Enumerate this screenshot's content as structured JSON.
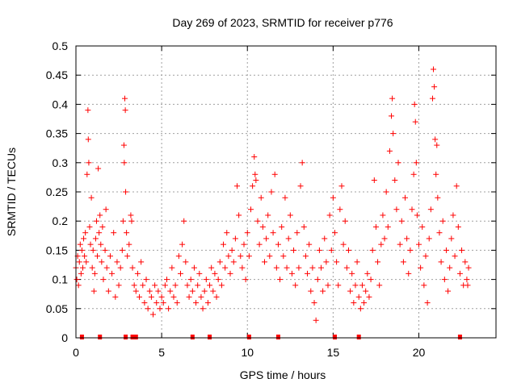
{
  "chart_data": {
    "type": "scatter",
    "title": "Day 269 of 2023, SRMTID for receiver p776",
    "xlabel": "GPS time / hours",
    "ylabel": "SRMTID / TECUs",
    "xlim": [
      0,
      24.5
    ],
    "ylim": [
      0,
      0.5
    ],
    "xticks": [
      "0",
      "5",
      "10",
      "15",
      "20"
    ],
    "yticks": [
      "0",
      "0.05",
      "0.1",
      "0.15",
      "0.2",
      "0.25",
      "0.3",
      "0.35",
      "0.4",
      "0.45",
      "0.5"
    ],
    "grid": true,
    "marker": "plus",
    "color": "#ff0000",
    "zero_marks": [
      0.35,
      1.4,
      2.9,
      3.3,
      3.5,
      6.8,
      7.8,
      10.1,
      11.8,
      15.1,
      16.5,
      22.4
    ],
    "series": [
      {
        "name": "p776",
        "points": [
          [
            0.0,
            0.12
          ],
          [
            0.05,
            0.1
          ],
          [
            0.1,
            0.14
          ],
          [
            0.15,
            0.09
          ],
          [
            0.2,
            0.13
          ],
          [
            0.25,
            0.16
          ],
          [
            0.3,
            0.11
          ],
          [
            0.35,
            0.15
          ],
          [
            0.4,
            0.12
          ],
          [
            0.45,
            0.17
          ],
          [
            0.5,
            0.14
          ],
          [
            0.55,
            0.18
          ],
          [
            0.6,
            0.13
          ],
          [
            0.65,
            0.28
          ],
          [
            0.7,
            0.39
          ],
          [
            0.72,
            0.34
          ],
          [
            0.75,
            0.3
          ],
          [
            0.8,
            0.19
          ],
          [
            0.85,
            0.16
          ],
          [
            0.9,
            0.24
          ],
          [
            0.95,
            0.12
          ],
          [
            1.0,
            0.15
          ],
          [
            1.05,
            0.08
          ],
          [
            1.1,
            0.11
          ],
          [
            1.15,
            0.17
          ],
          [
            1.2,
            0.2
          ],
          [
            1.25,
            0.14
          ],
          [
            1.3,
            0.29
          ],
          [
            1.35,
            0.18
          ],
          [
            1.4,
            0.21
          ],
          [
            1.45,
            0.16
          ],
          [
            1.5,
            0.13
          ],
          [
            1.55,
            0.19
          ],
          [
            1.6,
            0.1
          ],
          [
            1.7,
            0.15
          ],
          [
            1.75,
            0.22
          ],
          [
            1.8,
            0.12
          ],
          [
            1.9,
            0.08
          ],
          [
            2.0,
            0.14
          ],
          [
            2.1,
            0.11
          ],
          [
            2.2,
            0.18
          ],
          [
            2.3,
            0.07
          ],
          [
            2.4,
            0.13
          ],
          [
            2.5,
            0.09
          ],
          [
            2.6,
            0.12
          ],
          [
            2.7,
            0.15
          ],
          [
            2.75,
            0.2
          ],
          [
            2.8,
            0.33
          ],
          [
            2.82,
            0.3
          ],
          [
            2.85,
            0.41
          ],
          [
            2.88,
            0.39
          ],
          [
            2.9,
            0.25
          ],
          [
            2.95,
            0.18
          ],
          [
            3.0,
            0.14
          ],
          [
            3.1,
            0.16
          ],
          [
            3.2,
            0.21
          ],
          [
            3.25,
            0.2
          ],
          [
            3.3,
            0.12
          ],
          [
            3.4,
            0.09
          ],
          [
            3.5,
            0.08
          ],
          [
            3.6,
            0.11
          ],
          [
            3.7,
            0.07
          ],
          [
            3.8,
            0.13
          ],
          [
            3.9,
            0.09
          ],
          [
            4.0,
            0.06
          ],
          [
            4.1,
            0.1
          ],
          [
            4.2,
            0.05
          ],
          [
            4.3,
            0.08
          ],
          [
            4.4,
            0.07
          ],
          [
            4.5,
            0.04
          ],
          [
            4.6,
            0.09
          ],
          [
            4.7,
            0.06
          ],
          [
            4.8,
            0.08
          ],
          [
            4.9,
            0.05
          ],
          [
            5.0,
            0.07
          ],
          [
            5.1,
            0.06
          ],
          [
            5.2,
            0.09
          ],
          [
            5.3,
            0.1
          ],
          [
            5.4,
            0.05
          ],
          [
            5.5,
            0.08
          ],
          [
            5.6,
            0.12
          ],
          [
            5.7,
            0.07
          ],
          [
            5.8,
            0.09
          ],
          [
            5.9,
            0.06
          ],
          [
            6.0,
            0.14
          ],
          [
            6.1,
            0.11
          ],
          [
            6.2,
            0.16
          ],
          [
            6.3,
            0.2
          ],
          [
            6.4,
            0.13
          ],
          [
            6.5,
            0.09
          ],
          [
            6.6,
            0.07
          ],
          [
            6.7,
            0.1
          ],
          [
            6.8,
            0.08
          ],
          [
            6.9,
            0.12
          ],
          [
            7.0,
            0.06
          ],
          [
            7.1,
            0.09
          ],
          [
            7.2,
            0.11
          ],
          [
            7.3,
            0.07
          ],
          [
            7.4,
            0.05
          ],
          [
            7.5,
            0.08
          ],
          [
            7.6,
            0.1
          ],
          [
            7.7,
            0.06
          ],
          [
            7.8,
            0.09
          ],
          [
            7.9,
            0.12
          ],
          [
            8.0,
            0.08
          ],
          [
            8.1,
            0.11
          ],
          [
            8.2,
            0.07
          ],
          [
            8.3,
            0.1
          ],
          [
            8.4,
            0.13
          ],
          [
            8.5,
            0.09
          ],
          [
            8.6,
            0.16
          ],
          [
            8.7,
            0.12
          ],
          [
            8.8,
            0.18
          ],
          [
            8.9,
            0.14
          ],
          [
            9.0,
            0.11
          ],
          [
            9.1,
            0.15
          ],
          [
            9.2,
            0.13
          ],
          [
            9.3,
            0.17
          ],
          [
            9.4,
            0.26
          ],
          [
            9.5,
            0.21
          ],
          [
            9.6,
            0.14
          ],
          [
            9.7,
            0.12
          ],
          [
            9.8,
            0.16
          ],
          [
            9.9,
            0.1
          ],
          [
            10.0,
            0.18
          ],
          [
            10.1,
            0.14
          ],
          [
            10.2,
            0.22
          ],
          [
            10.3,
            0.26
          ],
          [
            10.4,
            0.31
          ],
          [
            10.45,
            0.28
          ],
          [
            10.5,
            0.27
          ],
          [
            10.6,
            0.2
          ],
          [
            10.7,
            0.16
          ],
          [
            10.8,
            0.24
          ],
          [
            10.9,
            0.19
          ],
          [
            11.0,
            0.13
          ],
          [
            11.1,
            0.17
          ],
          [
            11.2,
            0.21
          ],
          [
            11.3,
            0.14
          ],
          [
            11.4,
            0.25
          ],
          [
            11.5,
            0.18
          ],
          [
            11.6,
            0.28
          ],
          [
            11.7,
            0.12
          ],
          [
            11.8,
            0.16
          ],
          [
            11.9,
            0.1
          ],
          [
            12.0,
            0.19
          ],
          [
            12.1,
            0.14
          ],
          [
            12.2,
            0.24
          ],
          [
            12.3,
            0.12
          ],
          [
            12.4,
            0.17
          ],
          [
            12.5,
            0.21
          ],
          [
            12.6,
            0.11
          ],
          [
            12.7,
            0.15
          ],
          [
            12.8,
            0.09
          ],
          [
            12.9,
            0.18
          ],
          [
            13.0,
            0.12
          ],
          [
            13.1,
            0.26
          ],
          [
            13.2,
            0.3
          ],
          [
            13.3,
            0.19
          ],
          [
            13.4,
            0.14
          ],
          [
            13.5,
            0.11
          ],
          [
            13.6,
            0.16
          ],
          [
            13.7,
            0.08
          ],
          [
            13.8,
            0.12
          ],
          [
            13.9,
            0.06
          ],
          [
            14.0,
            0.03
          ],
          [
            14.1,
            0.1
          ],
          [
            14.2,
            0.15
          ],
          [
            14.3,
            0.12
          ],
          [
            14.4,
            0.08
          ],
          [
            14.5,
            0.17
          ],
          [
            14.6,
            0.13
          ],
          [
            14.7,
            0.09
          ],
          [
            14.8,
            0.21
          ],
          [
            14.9,
            0.15
          ],
          [
            15.0,
            0.24
          ],
          [
            15.1,
            0.18
          ],
          [
            15.2,
            0.13
          ],
          [
            15.3,
            0.09
          ],
          [
            15.4,
            0.22
          ],
          [
            15.5,
            0.26
          ],
          [
            15.6,
            0.16
          ],
          [
            15.7,
            0.2
          ],
          [
            15.8,
            0.12
          ],
          [
            15.9,
            0.15
          ],
          [
            16.0,
            0.08
          ],
          [
            16.1,
            0.11
          ],
          [
            16.2,
            0.06
          ],
          [
            16.3,
            0.09
          ],
          [
            16.4,
            0.13
          ],
          [
            16.5,
            0.07
          ],
          [
            16.6,
            0.05
          ],
          [
            16.7,
            0.09
          ],
          [
            16.8,
            0.06
          ],
          [
            16.9,
            0.08
          ],
          [
            17.0,
            0.11
          ],
          [
            17.1,
            0.07
          ],
          [
            17.2,
            0.1
          ],
          [
            17.3,
            0.15
          ],
          [
            17.4,
            0.27
          ],
          [
            17.5,
            0.19
          ],
          [
            17.6,
            0.13
          ],
          [
            17.7,
            0.09
          ],
          [
            17.8,
            0.16
          ],
          [
            17.9,
            0.21
          ],
          [
            18.0,
            0.17
          ],
          [
            18.1,
            0.25
          ],
          [
            18.2,
            0.19
          ],
          [
            18.3,
            0.32
          ],
          [
            18.4,
            0.38
          ],
          [
            18.45,
            0.41
          ],
          [
            18.5,
            0.35
          ],
          [
            18.6,
            0.27
          ],
          [
            18.7,
            0.22
          ],
          [
            18.8,
            0.3
          ],
          [
            18.9,
            0.16
          ],
          [
            19.0,
            0.2
          ],
          [
            19.1,
            0.13
          ],
          [
            19.2,
            0.24
          ],
          [
            19.3,
            0.17
          ],
          [
            19.4,
            0.11
          ],
          [
            19.5,
            0.15
          ],
          [
            19.6,
            0.22
          ],
          [
            19.7,
            0.28
          ],
          [
            19.75,
            0.4
          ],
          [
            19.8,
            0.37
          ],
          [
            19.85,
            0.3
          ],
          [
            19.9,
            0.21
          ],
          [
            20.0,
            0.16
          ],
          [
            20.1,
            0.12
          ],
          [
            20.2,
            0.19
          ],
          [
            20.3,
            0.09
          ],
          [
            20.4,
            0.14
          ],
          [
            20.5,
            0.06
          ],
          [
            20.6,
            0.17
          ],
          [
            20.7,
            0.22
          ],
          [
            20.8,
            0.41
          ],
          [
            20.85,
            0.46
          ],
          [
            20.9,
            0.43
          ],
          [
            20.95,
            0.34
          ],
          [
            21.0,
            0.28
          ],
          [
            21.05,
            0.33
          ],
          [
            21.1,
            0.24
          ],
          [
            21.2,
            0.18
          ],
          [
            21.3,
            0.13
          ],
          [
            21.4,
            0.2
          ],
          [
            21.5,
            0.1
          ],
          [
            21.6,
            0.15
          ],
          [
            21.7,
            0.08
          ],
          [
            21.8,
            0.12
          ],
          [
            21.9,
            0.17
          ],
          [
            22.0,
            0.21
          ],
          [
            22.1,
            0.14
          ],
          [
            22.2,
            0.26
          ],
          [
            22.3,
            0.19
          ],
          [
            22.4,
            0.11
          ],
          [
            22.5,
            0.15
          ],
          [
            22.6,
            0.09
          ],
          [
            22.7,
            0.13
          ],
          [
            22.8,
            0.1
          ],
          [
            22.85,
            0.09
          ],
          [
            22.9,
            0.12
          ]
        ]
      }
    ]
  }
}
